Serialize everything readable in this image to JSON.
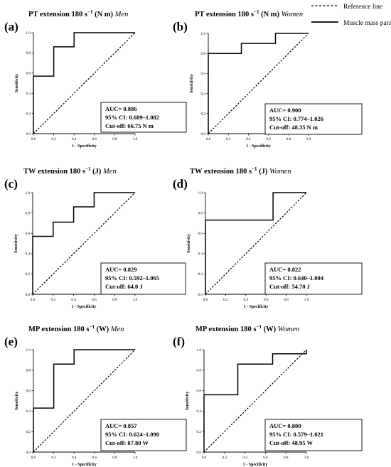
{
  "legend": [
    {
      "label": "Reference line",
      "style": "dashed"
    },
    {
      "label": "Muscle mass parameter",
      "style": "solid"
    }
  ],
  "chart_data": [
    {
      "type": "line",
      "panel": "(a)",
      "title": "PT extension 180 s",
      "title_unit": "(N m)",
      "title_group": "Men",
      "xlabel": "1 - Specificity",
      "ylabel": "Sensitivity",
      "xlim": [
        0,
        1
      ],
      "ylim": [
        0,
        1
      ],
      "xticks": [
        "0.0",
        "0.2",
        "0.4",
        "0.6",
        "0.8",
        "1.0"
      ],
      "yticks": [
        "0.0",
        "0.2",
        "0.4",
        "0.6",
        "0.8",
        "1.0"
      ],
      "series": [
        {
          "name": "Muscle mass parameter",
          "x": [
            0,
            0,
            0.2,
            0.2,
            0.4,
            0.4,
            1
          ],
          "y": [
            0,
            0.57,
            0.57,
            0.86,
            0.86,
            1,
            1
          ]
        },
        {
          "name": "Reference line",
          "x": [
            0,
            1
          ],
          "y": [
            0,
            1
          ]
        }
      ],
      "stats": [
        "AUC= 0.886",
        "95% CI: 0.689–1.082",
        "Cut-off: 66.75 N m"
      ]
    },
    {
      "type": "line",
      "panel": "(b)",
      "title": "PT extension 180 s",
      "title_unit": "(N m)",
      "title_group": "Women",
      "xlabel": "1 - Specificity",
      "ylabel": "Sensitivity",
      "xlim": [
        0,
        1
      ],
      "ylim": [
        0,
        1
      ],
      "xticks": [
        "0.0",
        "0.2",
        "0.4",
        "0.6",
        "0.8",
        "1.0"
      ],
      "yticks": [
        "0.0",
        "0.2",
        "0.4",
        "0.6",
        "0.8",
        "1.0"
      ],
      "series": [
        {
          "name": "Muscle mass parameter",
          "x": [
            0,
            0,
            0.33,
            0.33,
            0.67,
            0.67,
            1
          ],
          "y": [
            0,
            0.8,
            0.8,
            0.9,
            0.9,
            1,
            1
          ]
        },
        {
          "name": "Reference line",
          "x": [
            0,
            1
          ],
          "y": [
            0,
            1
          ]
        }
      ],
      "stats": [
        "AUC= 0.900",
        "95% CI: 0.774–1.026",
        "Cut-off: 48.35 N m"
      ]
    },
    {
      "type": "line",
      "panel": "(c)",
      "title": "TW extension 180 s",
      "title_unit": "(J)",
      "title_group": "Men",
      "xlabel": "1 - Specificity",
      "ylabel": "Sensitivity",
      "xlim": [
        0,
        1
      ],
      "ylim": [
        0,
        1
      ],
      "xticks": [
        "0.0",
        "0.2",
        "0.4",
        "0.6",
        "0.8",
        "1.0"
      ],
      "yticks": [
        "0.0",
        "0.2",
        "0.4",
        "0.6",
        "0.8",
        "1.0"
      ],
      "series": [
        {
          "name": "Muscle mass parameter",
          "x": [
            0,
            0,
            0.2,
            0.2,
            0.4,
            0.4,
            0.6,
            0.6,
            1
          ],
          "y": [
            0,
            0.57,
            0.57,
            0.71,
            0.71,
            0.86,
            0.86,
            1,
            1
          ]
        },
        {
          "name": "Reference line",
          "x": [
            0,
            1
          ],
          "y": [
            0,
            1
          ]
        }
      ],
      "stats": [
        "AUC= 0.829",
        "95% CI: 0.592–1.065",
        "Cut-off: 64.0 J"
      ]
    },
    {
      "type": "line",
      "panel": "(d)",
      "title": "TW extension 180 s",
      "title_unit": "(J)",
      "title_group": "Women",
      "xlabel": "1 - Specificity",
      "ylabel": "Sensitivity",
      "xlim": [
        0,
        1
      ],
      "ylim": [
        0,
        1
      ],
      "xticks": [
        "0.0",
        "0.2",
        "0.4",
        "0.6",
        "0.8",
        "1.0"
      ],
      "yticks": [
        "0.0",
        "0.2",
        "0.4",
        "0.6",
        "0.8",
        "1.0"
      ],
      "series": [
        {
          "name": "Muscle mass parameter",
          "x": [
            0,
            0,
            0.67,
            0.67,
            1
          ],
          "y": [
            0,
            0.73,
            0.73,
            1,
            1
          ]
        },
        {
          "name": "Reference line",
          "x": [
            0,
            1
          ],
          "y": [
            0,
            1
          ]
        }
      ],
      "stats": [
        "AUC= 0.822",
        "95% CI: 0.640–1.004",
        "Cut-off: 54.70 J"
      ]
    },
    {
      "type": "line",
      "panel": "(e)",
      "title": "MP extension 180 s",
      "title_unit": "(W)",
      "title_group": "Men",
      "xlabel": "1 - Specificity",
      "ylabel": "Sensitivity",
      "xlim": [
        0,
        1
      ],
      "ylim": [
        0,
        1
      ],
      "xticks": [
        "0.0",
        "0.2",
        "0.4",
        "0.6",
        "0.8",
        "1.0"
      ],
      "yticks": [
        "0.0",
        "0.2",
        "0.4",
        "0.6",
        "0.8",
        "1.0"
      ],
      "series": [
        {
          "name": "Muscle mass parameter",
          "x": [
            0,
            0,
            0.2,
            0.2,
            0.4,
            0.4,
            1
          ],
          "y": [
            0,
            0.43,
            0.43,
            0.86,
            0.86,
            1,
            1
          ]
        },
        {
          "name": "Reference line",
          "x": [
            0,
            1
          ],
          "y": [
            0,
            1
          ]
        }
      ],
      "stats": [
        "AUC= 0.857",
        "95% CI: 0.624–1.090",
        "Cut-off: 87.80 W"
      ]
    },
    {
      "type": "line",
      "panel": "(f)",
      "title": "MP extension 180 s",
      "title_unit": "(W)",
      "title_group": "Women",
      "xlabel": "1 - Specificity",
      "ylabel": "Sensitivity",
      "xlim": [
        0,
        1
      ],
      "ylim": [
        0,
        1
      ],
      "xticks": [
        "0.0",
        "0.2",
        "0.4",
        "0.6",
        "0.8",
        "1.0"
      ],
      "yticks": [
        "0.0",
        "0.2",
        "0.4",
        "0.6",
        "0.8",
        "1.0"
      ],
      "series": [
        {
          "name": "Muscle mass parameter",
          "x": [
            0,
            0,
            0.33,
            0.33,
            0.67,
            0.67,
            1,
            1
          ],
          "y": [
            0,
            0.56,
            0.56,
            0.86,
            0.86,
            0.96,
            0.96,
            1
          ]
        },
        {
          "name": "Reference line",
          "x": [
            0,
            1
          ],
          "y": [
            0,
            1
          ]
        }
      ],
      "stats": [
        "AUC= 0.800",
        "95% CI: 0.579–1.021",
        "Cut-off: 48.95 W"
      ]
    }
  ]
}
